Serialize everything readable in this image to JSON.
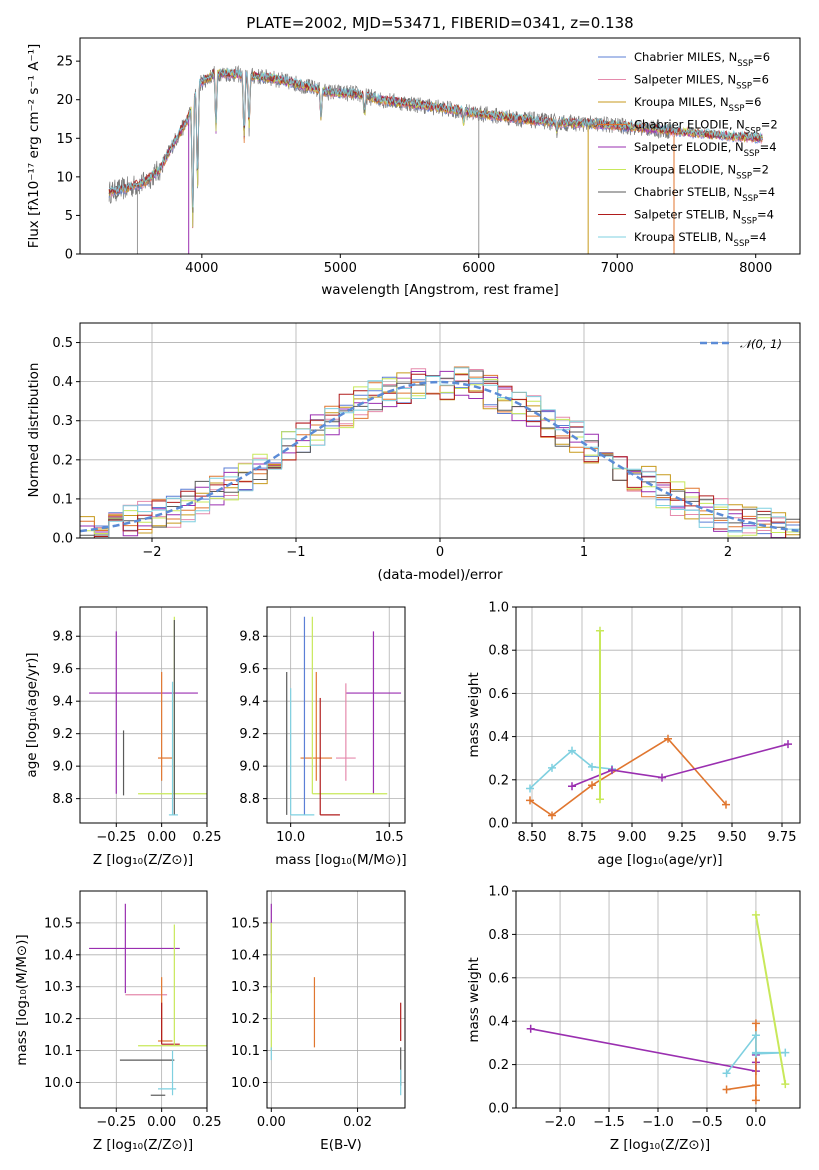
{
  "page": {
    "title": "PLATE=2002, MJD=53471, FIBERID=0341, z=0.138"
  },
  "colors": {
    "chabrier_miles": "#5b7fd6",
    "salpeter_miles": "#e58aac",
    "kroupa_miles": "#c79a1c",
    "chabrier_elodie": "#e0762f",
    "salpeter_elodie": "#9a2fb0",
    "kroupa_elodie": "#c8e85a",
    "chabrier_stelib": "#5a5a5a",
    "salpeter_stelib": "#b01c1c",
    "kroupa_stelib": "#7fd0e0",
    "data": "#7a7a7a",
    "normal": "#5b8bd6"
  },
  "chart_data": [
    {
      "id": "spectrum",
      "type": "line",
      "title": "PLATE=2002, MJD=53471, FIBERID=0341, z=0.138",
      "xlabel": "wavelength [Angstrom, rest frame]",
      "ylabel": "Flux [fλ10⁻¹⁷ erg cm⁻² s⁻¹ A⁻¹]",
      "xlim": [
        3120,
        8320
      ],
      "ylim": [
        0,
        28
      ],
      "xticks": [
        "4000",
        "5000",
        "6000",
        "7000",
        "8000"
      ],
      "yticks": [
        "0",
        "5",
        "10",
        "15",
        "20",
        "25"
      ],
      "grid": false,
      "legend_position": "top-right",
      "legend": [
        "Chabrier MILES, N_SSP=6",
        "Salpeter MILES, N_SSP=6",
        "Kroupa MILES, N_SSP=6",
        "Chabrier ELODIE, N_SSP=2",
        "Salpeter ELODIE, N_SSP=4",
        "Kroupa ELODIE, N_SSP=2",
        "Chabrier STELIB, N_SSP=4",
        "Salpeter STELIB, N_SSP=4",
        "Kroupa STELIB, N_SSP=4"
      ],
      "continuum": [
        [
          3330,
          8
        ],
        [
          3450,
          8.5
        ],
        [
          3580,
          9.2
        ],
        [
          3700,
          11
        ],
        [
          3800,
          14.5
        ],
        [
          3900,
          17.5
        ],
        [
          3980,
          22
        ],
        [
          4100,
          23.5
        ],
        [
          4300,
          23.2
        ],
        [
          4500,
          22.8
        ],
        [
          4700,
          22
        ],
        [
          4900,
          21
        ],
        [
          5100,
          20.8
        ],
        [
          5300,
          20
        ],
        [
          5500,
          19.5
        ],
        [
          5700,
          19
        ],
        [
          6000,
          18.2
        ],
        [
          6300,
          17.5
        ],
        [
          6600,
          17
        ],
        [
          6900,
          16.8
        ],
        [
          7200,
          16.3
        ],
        [
          7500,
          15.8
        ],
        [
          7800,
          15.3
        ],
        [
          8050,
          15
        ]
      ],
      "absorption": [
        [
          3934,
          3
        ],
        [
          3969,
          8
        ],
        [
          4102,
          16
        ],
        [
          4305,
          14
        ],
        [
          4341,
          16
        ],
        [
          4861,
          17.5
        ],
        [
          5175,
          18
        ],
        [
          5890,
          17
        ],
        [
          6563,
          16
        ]
      ]
    },
    {
      "id": "residuals",
      "type": "histogram",
      "xlabel": "(data-model)/error",
      "ylabel": "Normed distribution",
      "xlim": [
        -2.5,
        2.5
      ],
      "ylim": [
        0,
        0.55
      ],
      "xticks": [
        "−2",
        "−1",
        "0",
        "1",
        "2"
      ],
      "yticks": [
        "0.0",
        "0.1",
        "0.2",
        "0.3",
        "0.4",
        "0.5"
      ],
      "grid": true,
      "legend_position": "top-right",
      "legend": [
        "𝒩(0, 1)"
      ],
      "bin_width": 0.1
    },
    {
      "id": "age_vs_Z",
      "type": "errorbar",
      "xlabel": "Z [log₁₀(Z/Z⊙)]",
      "ylabel": "age  [log₁₀(age/yr)]",
      "xlim": [
        -0.45,
        0.25
      ],
      "ylim": [
        8.65,
        9.98
      ],
      "xticks": [
        "−0.25",
        "0.00",
        "0.25"
      ],
      "xtickvals": [
        -0.25,
        0,
        0.25
      ],
      "yticks": [
        "8.8",
        "9.0",
        "9.2",
        "9.4",
        "9.6",
        "9.8"
      ],
      "ytickvals": [
        8.8,
        9.0,
        9.2,
        9.4,
        9.6,
        9.8
      ],
      "grid": true,
      "points": [
        {
          "series": "salpeter_elodie",
          "x": -0.25,
          "y": 9.45,
          "xerr": [
            0.15,
            0.45
          ],
          "yerr": [
            0.62,
            0.38
          ]
        },
        {
          "series": "chabrier_elodie",
          "x": 0.0,
          "y": 9.05,
          "xerr": [
            0.02,
            0.06
          ],
          "yerr": [
            0.14,
            0.53
          ]
        },
        {
          "series": "kroupa_elodie",
          "x": 0.07,
          "y": 8.83,
          "xerr": [
            0.2,
            0.25
          ],
          "yerr": [
            0.0,
            1.09
          ]
        },
        {
          "series": "chabrier_stelib",
          "x": 0.07,
          "y": 8.7,
          "xerr": [
            0.0,
            0.0
          ],
          "yerr": [
            0.0,
            1.2
          ]
        },
        {
          "series": "kroupa_stelib",
          "x": 0.06,
          "y": 8.7,
          "xerr": [
            0.02,
            0.03
          ],
          "yerr": [
            0.0,
            0.82
          ]
        },
        {
          "series": "chabrier_stelib",
          "x": -0.21,
          "y": 8.82,
          "xerr": [
            0.0,
            0.0
          ],
          "yerr": [
            0.0,
            0.4
          ]
        }
      ]
    },
    {
      "id": "age_vs_mass",
      "type": "errorbar",
      "xlabel": "mass [log₁₀(M/M⊙)]",
      "ylabel": "",
      "xlim": [
        9.88,
        10.58
      ],
      "ylim": [
        8.65,
        9.98
      ],
      "xticks": [
        "10.0",
        "10.5"
      ],
      "xtickvals": [
        10.0,
        10.5
      ],
      "yticks": [
        "8.8",
        "9.0",
        "9.2",
        "9.4",
        "9.6",
        "9.8"
      ],
      "ytickvals": [
        8.8,
        9.0,
        9.2,
        9.4,
        9.6,
        9.8
      ],
      "grid": true,
      "points": [
        {
          "series": "salpeter_elodie",
          "x": 10.42,
          "y": 9.45,
          "xerr": [
            0.14,
            0.14
          ],
          "yerr": [
            0.62,
            0.38
          ]
        },
        {
          "series": "salpeter_miles",
          "x": 10.28,
          "y": 9.05,
          "xerr": [
            0.05,
            0.05
          ],
          "yerr": [
            0.14,
            0.46
          ]
        },
        {
          "series": "chabrier_elodie",
          "x": 10.13,
          "y": 9.05,
          "xerr": [
            0.08,
            0.08
          ],
          "yerr": [
            0.14,
            0.53
          ]
        },
        {
          "series": "kroupa_elodie",
          "x": 10.11,
          "y": 8.83,
          "xerr": [
            0.0,
            0.38
          ],
          "yerr": [
            0.0,
            1.09
          ]
        },
        {
          "series": "chabrier_miles",
          "x": 10.07,
          "y": 8.7,
          "xerr": [
            0.0,
            0.0
          ],
          "yerr": [
            0.0,
            1.22
          ]
        },
        {
          "series": "chabrier_stelib",
          "x": 9.98,
          "y": 8.7,
          "xerr": [
            0.0,
            0.0
          ],
          "yerr": [
            0.0,
            0.88
          ]
        },
        {
          "series": "kroupa_stelib",
          "x": 10.0,
          "y": 8.7,
          "xerr": [
            0.0,
            0.12
          ],
          "yerr": [
            0.0,
            0.78
          ]
        },
        {
          "series": "salpeter_stelib",
          "x": 10.15,
          "y": 8.7,
          "xerr": [
            0.0,
            0.1
          ],
          "yerr": [
            0.0,
            0.72
          ]
        }
      ]
    },
    {
      "id": "massweight_vs_age",
      "type": "line",
      "xlabel": "age  [log₁₀(age/yr)]",
      "ylabel": "mass weight",
      "xlim": [
        8.42,
        9.84
      ],
      "ylim": [
        0,
        1.0
      ],
      "xticks": [
        "8.50",
        "8.75",
        "9.00",
        "9.25",
        "9.50",
        "9.75"
      ],
      "xtickvals": [
        8.5,
        8.75,
        9.0,
        9.25,
        9.5,
        9.75
      ],
      "yticks": [
        "0.0",
        "0.2",
        "0.4",
        "0.6",
        "0.8",
        "1.0"
      ],
      "ytickvals": [
        0,
        0.2,
        0.4,
        0.6,
        0.8,
        1.0
      ],
      "grid": true,
      "series": [
        {
          "name": "",
          "key": "chabrier_elodie",
          "points": [
            [
              8.49,
              0.105
            ],
            [
              8.6,
              0.035
            ],
            [
              8.8,
              0.175
            ],
            [
              9.18,
              0.39
            ],
            [
              9.47,
              0.085
            ]
          ]
        },
        {
          "name": "",
          "key": "kroupa_stelib",
          "points": [
            [
              8.49,
              0.16
            ],
            [
              8.6,
              0.255
            ],
            [
              8.7,
              0.335
            ],
            [
              8.8,
              0.26
            ],
            [
              8.9,
              0.25
            ]
          ]
        },
        {
          "name": "",
          "key": "salpeter_elodie",
          "points": [
            [
              8.7,
              0.17
            ],
            [
              8.9,
              0.245
            ],
            [
              9.15,
              0.21
            ],
            [
              9.78,
              0.365
            ]
          ]
        },
        {
          "name": "",
          "key": "kroupa_elodie",
          "points": [
            [
              8.84,
              0.89
            ],
            [
              8.84,
              0.11
            ]
          ]
        }
      ]
    },
    {
      "id": "mass_vs_Z",
      "type": "errorbar",
      "xlabel": "Z [log₁₀(Z/Z⊙)]",
      "ylabel": "mass [log₁₀(M/M⊙)]",
      "xlim": [
        -0.45,
        0.25
      ],
      "ylim": [
        9.92,
        10.6
      ],
      "xticks": [
        "−0.25",
        "0.00",
        "0.25"
      ],
      "xtickvals": [
        -0.25,
        0,
        0.25
      ],
      "yticks": [
        "10.0",
        "10.1",
        "10.2",
        "10.3",
        "10.4",
        "10.5"
      ],
      "ytickvals": [
        10.0,
        10.1,
        10.2,
        10.3,
        10.4,
        10.5
      ],
      "grid": true,
      "points": [
        {
          "series": "salpeter_elodie",
          "x": -0.2,
          "y": 10.42,
          "xerr": [
            0.2,
            0.3
          ],
          "yerr": [
            0.14,
            0.14
          ]
        },
        {
          "series": "salpeter_miles",
          "x": 0.0,
          "y": 10.275,
          "xerr": [
            0.2,
            0.03
          ],
          "yerr": [
            0.0,
            0.0
          ]
        },
        {
          "series": "chabrier_elodie",
          "x": 0.0,
          "y": 10.13,
          "xerr": [
            0.02,
            0.06
          ],
          "yerr": [
            0.0,
            0.2
          ]
        },
        {
          "series": "salpeter_stelib",
          "x": 0.0,
          "y": 10.12,
          "xerr": [
            0.0,
            0.1
          ],
          "yerr": [
            0.0,
            0.13
          ]
        },
        {
          "series": "kroupa_elodie",
          "x": 0.07,
          "y": 10.115,
          "xerr": [
            0.2,
            0.25
          ],
          "yerr": [
            0.0,
            0.38
          ]
        },
        {
          "series": "chabrier_stelib",
          "x": 0.0,
          "y": 10.07,
          "xerr": [
            0.23,
            0.07
          ],
          "yerr": [
            0.0,
            0.0
          ]
        },
        {
          "series": "kroupa_stelib",
          "x": 0.06,
          "y": 9.98,
          "xerr": [
            0.08,
            0.02
          ],
          "yerr": [
            0.02,
            0.12
          ]
        },
        {
          "series": "chabrier_stelib",
          "x": -0.02,
          "y": 9.96,
          "xerr": [
            0.04,
            0.04
          ],
          "yerr": [
            0.0,
            0.0
          ]
        }
      ]
    },
    {
      "id": "mass_vs_ebv",
      "type": "errorbar",
      "xlabel": "E(B-V)",
      "ylabel": "",
      "xlim": [
        -0.001,
        0.031
      ],
      "ylim": [
        9.92,
        10.6
      ],
      "xticks": [
        "0.00",
        "0.02"
      ],
      "xtickvals": [
        0,
        0.02
      ],
      "yticks": [
        "10.0",
        "10.1",
        "10.2",
        "10.3",
        "10.4",
        "10.5"
      ],
      "ytickvals": [
        10.0,
        10.1,
        10.2,
        10.3,
        10.4,
        10.5
      ],
      "grid": true,
      "points": [
        {
          "series": "salpeter_elodie",
          "x": 0.0,
          "y": 10.42,
          "xerr": [
            0,
            0
          ],
          "yerr": [
            0.14,
            0.14
          ]
        },
        {
          "series": "kroupa_elodie",
          "x": 0.0,
          "y": 10.3,
          "xerr": [
            0,
            0
          ],
          "yerr": [
            0.2,
            0.2
          ]
        },
        {
          "series": "kroupa_stelib",
          "x": 0.0,
          "y": 10.09,
          "xerr": [
            0,
            0
          ],
          "yerr": [
            0.02,
            0.02
          ]
        },
        {
          "series": "chabrier_elodie",
          "x": 0.01,
          "y": 10.22,
          "xerr": [
            0,
            0
          ],
          "yerr": [
            0.11,
            0.11
          ]
        },
        {
          "series": "salpeter_stelib",
          "x": 0.03,
          "y": 10.19,
          "xerr": [
            0,
            0
          ],
          "yerr": [
            0.06,
            0.06
          ]
        },
        {
          "series": "chabrier_stelib",
          "x": 0.03,
          "y": 10.05,
          "xerr": [
            0,
            0
          ],
          "yerr": [
            0.06,
            0.06
          ]
        },
        {
          "series": "kroupa_stelib",
          "x": 0.03,
          "y": 10.0,
          "xerr": [
            0,
            0
          ],
          "yerr": [
            0.04,
            0.04
          ]
        }
      ]
    },
    {
      "id": "massweight_vs_Z",
      "type": "line",
      "xlabel": "Z [log₁₀(Z/Z⊙)]",
      "ylabel": "mass weight",
      "xlim": [
        -2.45,
        0.45
      ],
      "ylim": [
        0,
        1.0
      ],
      "xticks": [
        "−2.0",
        "−1.5",
        "−1.0",
        "−0.5",
        "0.0"
      ],
      "xtickvals": [
        -2.0,
        -1.5,
        -1.0,
        -0.5,
        0.0
      ],
      "yticks": [
        "0.0",
        "0.2",
        "0.4",
        "0.6",
        "0.8",
        "1.0"
      ],
      "ytickvals": [
        0,
        0.2,
        0.4,
        0.6,
        0.8,
        1.0
      ],
      "grid": true,
      "series": [
        {
          "name": "",
          "key": "salpeter_elodie",
          "points": [
            [
              -2.3,
              0.365
            ],
            [
              0.0,
              0.17
            ],
            [
              0.0,
              0.21
            ],
            [
              0.0,
              0.245
            ]
          ]
        },
        {
          "name": "",
          "key": "chabrier_elodie",
          "points": [
            [
              -0.3,
              0.085
            ],
            [
              0.0,
              0.105
            ],
            [
              0.0,
              0.39
            ],
            [
              0.0,
              0.035
            ]
          ]
        },
        {
          "name": "",
          "key": "kroupa_stelib",
          "points": [
            [
              -0.3,
              0.16
            ],
            [
              0.0,
              0.335
            ],
            [
              0.0,
              0.25
            ],
            [
              0.3,
              0.255
            ],
            [
              0.0,
              0.255
            ]
          ]
        },
        {
          "name": "",
          "key": "kroupa_elodie",
          "points": [
            [
              0.0,
              0.89
            ],
            [
              0.3,
              0.11
            ]
          ]
        }
      ]
    }
  ]
}
